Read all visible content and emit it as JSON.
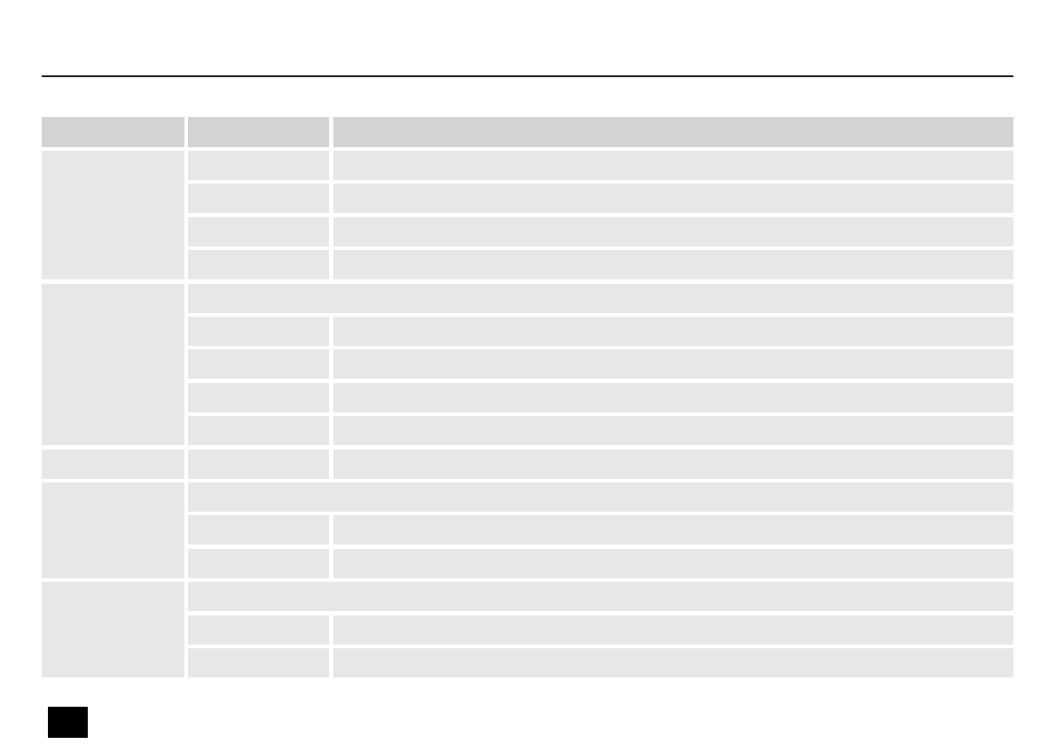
{
  "table": {
    "headers": [
      "",
      "",
      ""
    ],
    "groups": [
      {
        "label": "",
        "span_text": null,
        "rows": [
          [
            "",
            ""
          ],
          [
            "",
            ""
          ],
          [
            "",
            ""
          ],
          [
            "",
            ""
          ]
        ]
      },
      {
        "label": "",
        "span_text": "",
        "rows": [
          [
            "",
            ""
          ],
          [
            "",
            ""
          ],
          [
            "",
            ""
          ],
          [
            "",
            ""
          ]
        ]
      },
      {
        "label": "",
        "span_text": null,
        "rows": [
          [
            "",
            ""
          ]
        ]
      },
      {
        "label": "",
        "span_text": "",
        "rows": [
          [
            "",
            ""
          ],
          [
            "",
            ""
          ]
        ]
      },
      {
        "label": "",
        "span_text": "",
        "rows": [
          [
            "",
            ""
          ],
          [
            "",
            ""
          ]
        ]
      }
    ]
  },
  "colors": {
    "header": "#d3d3d3",
    "cell": "#e7e7e7",
    "rule": "#111111",
    "marker": "#000000"
  }
}
